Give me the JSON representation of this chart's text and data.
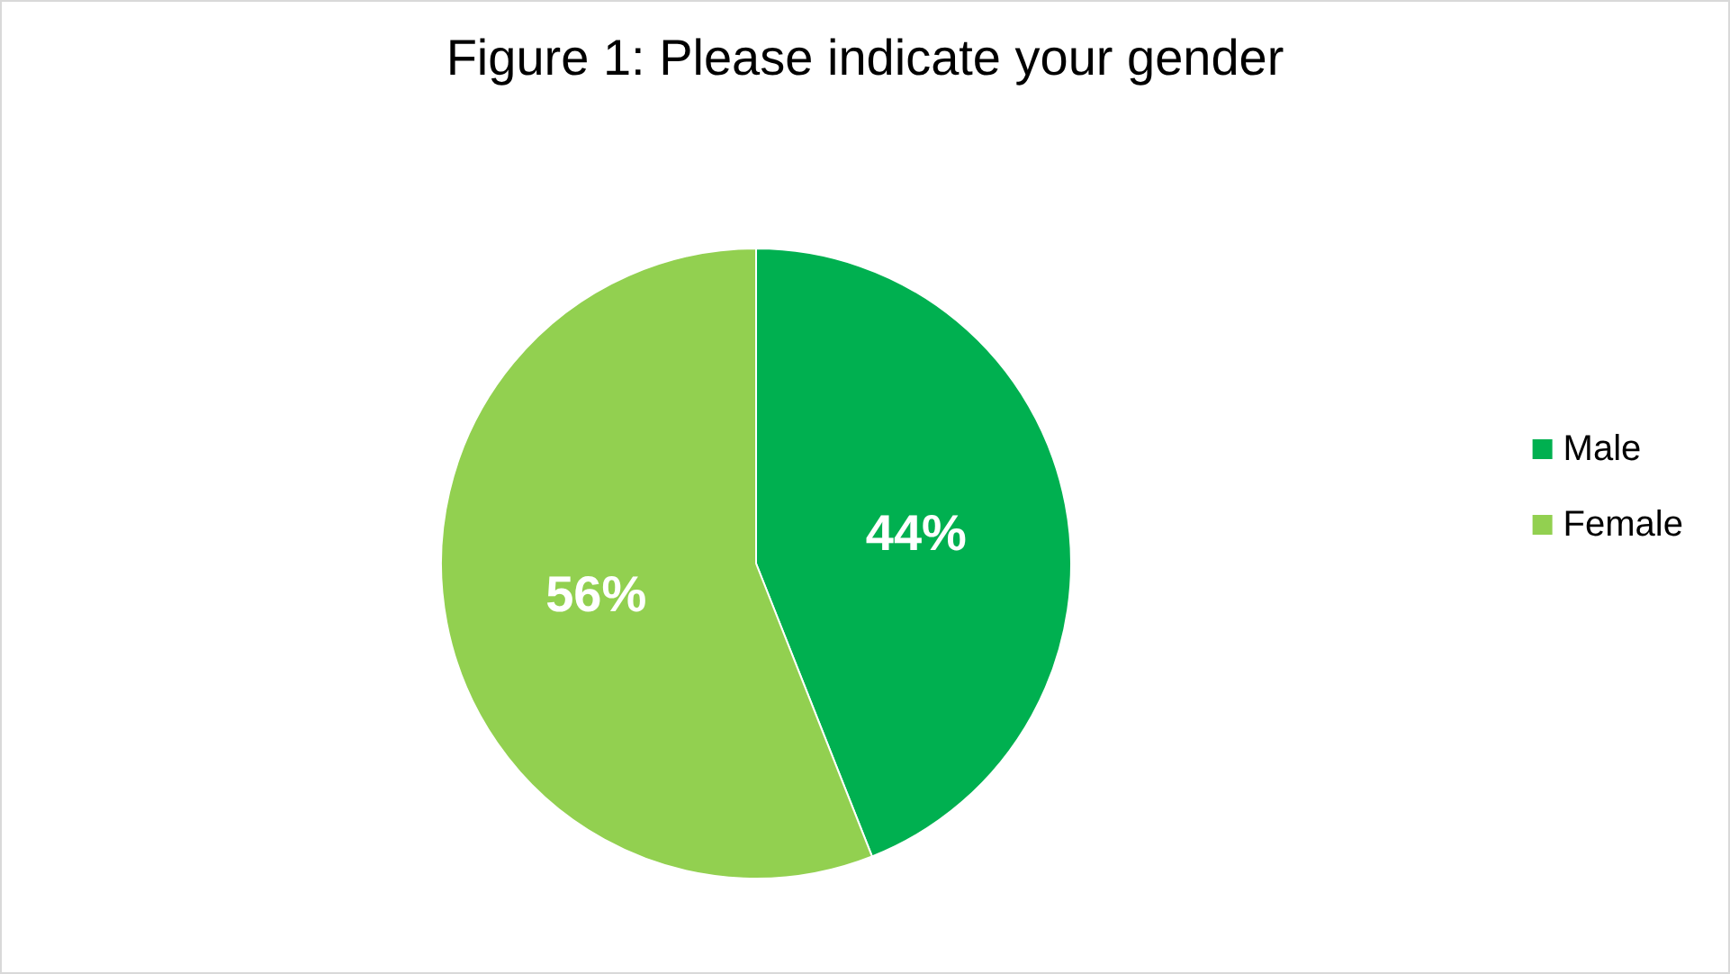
{
  "chart_data": {
    "type": "pie",
    "title": "Figure 1: Please indicate your gender",
    "categories": [
      "Male",
      "Female"
    ],
    "values": [
      44,
      56
    ],
    "colors": [
      "#00b050",
      "#92d050"
    ],
    "value_labels": [
      "44%",
      "56%"
    ],
    "legend": "right"
  }
}
